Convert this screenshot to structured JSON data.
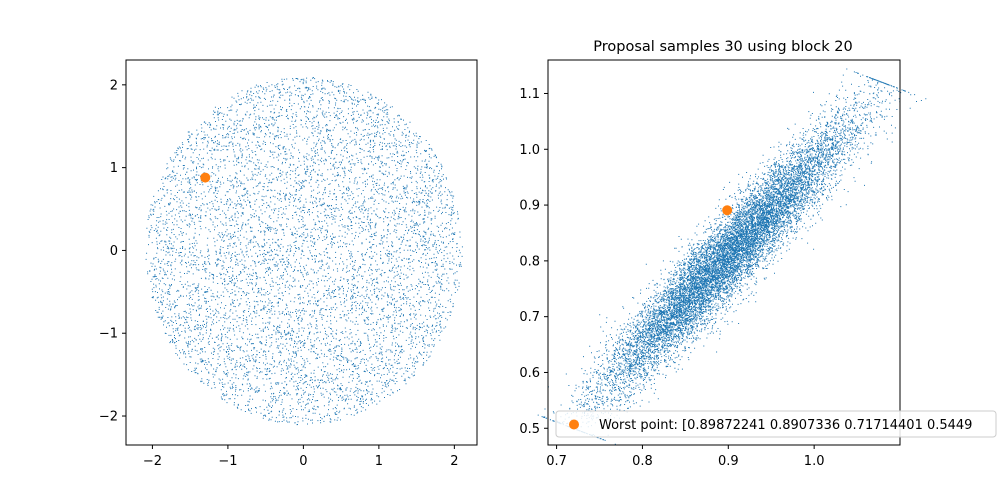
{
  "chart_data": [
    {
      "type": "scatter",
      "title": "",
      "xlabel": "",
      "ylabel": "",
      "xlim": [
        -2.35,
        2.3
      ],
      "ylim": [
        -2.35,
        2.3
      ],
      "xticks": [
        -2,
        -1,
        0,
        1,
        2
      ],
      "yticks": [
        -2,
        -1,
        0,
        1,
        2
      ],
      "xtick_labels": [
        "−2",
        "−1",
        "0",
        "1",
        "2"
      ],
      "ytick_labels": [
        "−2",
        "−1",
        "0",
        "1",
        "2"
      ],
      "grid": false,
      "series": [
        {
          "kind": "samples",
          "color": "#1f77b4",
          "distribution": "dense cloud of points filling a disk centered at (0, 0) with radius about 2.1",
          "center": [
            0,
            0
          ],
          "radius": 2.1
        },
        {
          "kind": "worst-point",
          "color": "#ff7f0e",
          "points": [
            [
              -1.3,
              0.88
            ]
          ]
        }
      ]
    },
    {
      "type": "scatter",
      "title": "Proposal samples 30 using block 20",
      "xlabel": "",
      "ylabel": "",
      "xlim": [
        0.69,
        1.1
      ],
      "ylim": [
        0.47,
        1.16
      ],
      "xticks": [
        0.7,
        0.8,
        0.9,
        1.0
      ],
      "yticks": [
        0.5,
        0.6,
        0.7,
        0.8,
        0.9,
        1.0,
        1.1
      ],
      "xtick_labels": [
        "0.7",
        "0.8",
        "0.9",
        "1.0"
      ],
      "ytick_labels": [
        "0.5",
        "0.6",
        "0.7",
        "0.8",
        "0.9",
        "1.0",
        "1.1"
      ],
      "grid": false,
      "legend": {
        "placement": "lower-right",
        "entries": [
          {
            "label": "Worst point: [0.89872241 0.8907336  0.71714401 0.5449",
            "color": "#ff7f0e",
            "marker": "circle"
          }
        ]
      },
      "series": [
        {
          "kind": "samples",
          "color": "#1f77b4",
          "distribution": "dense elongated ellipse of points along the diagonal from about (0.72, 0.50) to (1.08, 1.12)",
          "start": [
            0.72,
            0.5
          ],
          "end": [
            1.08,
            1.12
          ],
          "half_width": 0.025
        },
        {
          "kind": "worst-point",
          "color": "#ff7f0e",
          "points": [
            [
              0.8987,
              0.8907
            ]
          ]
        }
      ]
    }
  ]
}
